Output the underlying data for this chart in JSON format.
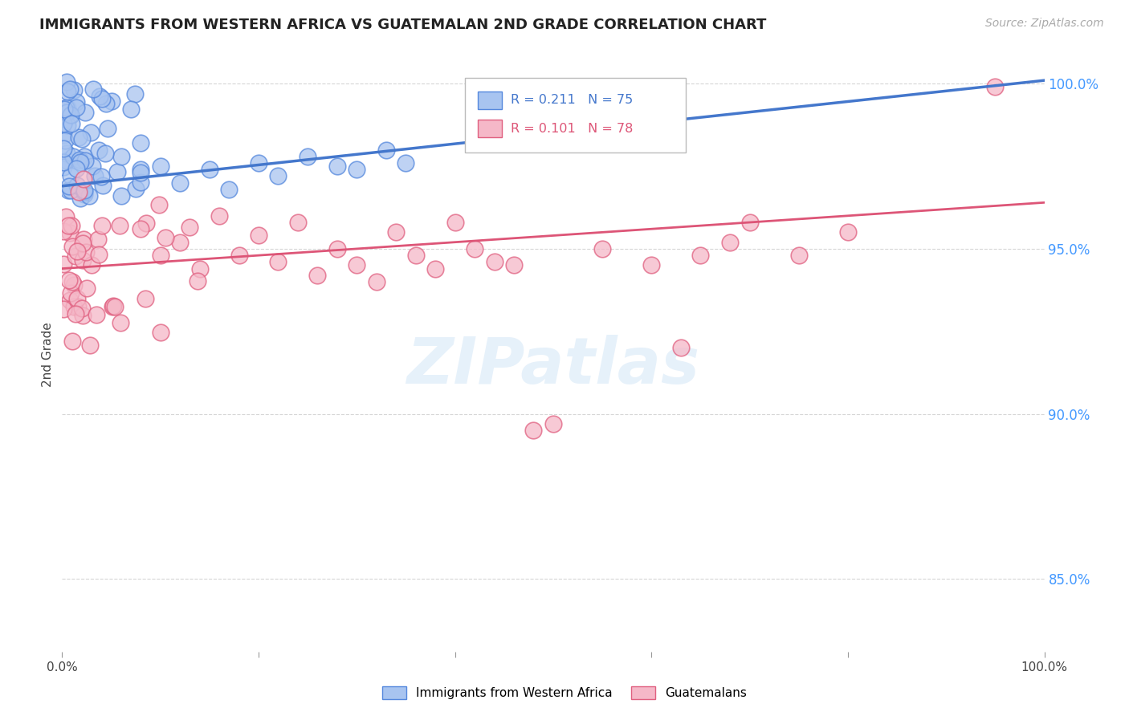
{
  "title": "IMMIGRANTS FROM WESTERN AFRICA VS GUATEMALAN 2ND GRADE CORRELATION CHART",
  "source": "Source: ZipAtlas.com",
  "ylabel": "2nd Grade",
  "xlim": [
    0.0,
    1.0
  ],
  "ylim": [
    0.828,
    1.008
  ],
  "yticks": [
    0.85,
    0.9,
    0.95,
    1.0
  ],
  "ytick_labels": [
    "85.0%",
    "90.0%",
    "95.0%",
    "100.0%"
  ],
  "blue_R": 0.211,
  "blue_N": 75,
  "pink_R": 0.101,
  "pink_N": 78,
  "blue_fill": "#a8c4f0",
  "blue_edge": "#5588dd",
  "pink_fill": "#f5b8c8",
  "pink_edge": "#e06080",
  "blue_line_color": "#4477cc",
  "pink_line_color": "#dd5577",
  "blue_line_start_y": 0.969,
  "blue_line_end_y": 1.001,
  "pink_line_start_y": 0.944,
  "pink_line_end_y": 0.964,
  "legend_label_blue": "Immigrants from Western Africa",
  "legend_label_pink": "Guatemalans",
  "watermark_text": "ZIPatlas",
  "grid_color": "#cccccc",
  "right_label_color": "#4499ff",
  "title_color": "#222222",
  "source_color": "#aaaaaa"
}
